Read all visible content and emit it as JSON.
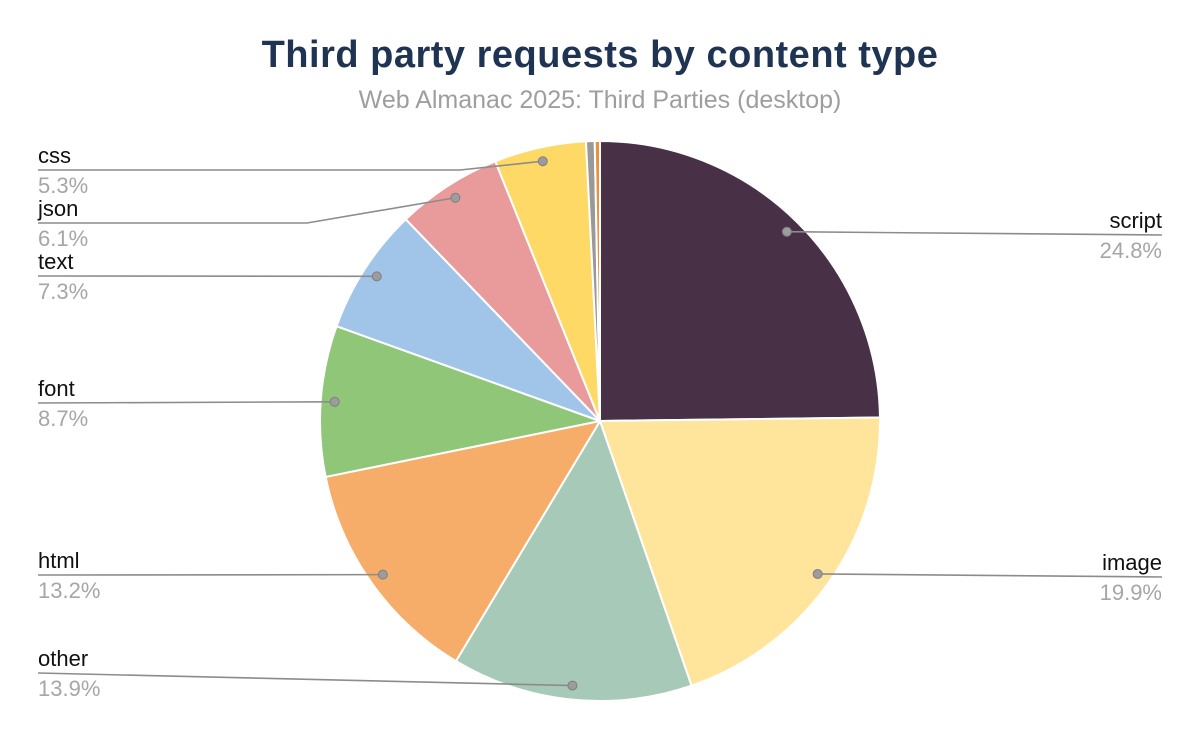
{
  "title": "Third party requests by content type",
  "subtitle": "Web Almanac 2025: Third Parties (desktop)",
  "colors": {
    "title": "#1f3352",
    "subtitle": "#9e9e9e",
    "label_text": "#101010",
    "value_text": "#a6a6a6",
    "leader_line": "#8c8c8c",
    "leader_dot": "#9c9c9c",
    "background": "#ffffff"
  },
  "chart_data": {
    "type": "pie",
    "title": "Third party requests by content type",
    "subtitle": "Web Almanac 2025: Third Parties (desktop)",
    "unit": "%",
    "start_angle_deg": 0,
    "direction": "clockwise",
    "legend_position": "none",
    "slices": [
      {
        "label": "script",
        "value": 24.8,
        "display": "24.8%",
        "color": "#483146",
        "labeled": true,
        "label_side": "right"
      },
      {
        "label": "image",
        "value": 19.9,
        "display": "19.9%",
        "color": "#ffe49c",
        "labeled": true,
        "label_side": "right"
      },
      {
        "label": "other",
        "value": 13.9,
        "display": "13.9%",
        "color": "#a7c9b8",
        "labeled": true,
        "label_side": "left"
      },
      {
        "label": "html",
        "value": 13.2,
        "display": "13.2%",
        "color": "#f6ad69",
        "labeled": true,
        "label_side": "left"
      },
      {
        "label": "font",
        "value": 8.7,
        "display": "8.7%",
        "color": "#90c678",
        "labeled": true,
        "label_side": "left"
      },
      {
        "label": "text",
        "value": 7.3,
        "display": "7.3%",
        "color": "#a0c5e8",
        "labeled": true,
        "label_side": "left"
      },
      {
        "label": "json",
        "value": 6.1,
        "display": "6.1%",
        "color": "#e99a9a",
        "labeled": true,
        "label_side": "left"
      },
      {
        "label": "css",
        "value": 5.3,
        "display": "5.3%",
        "color": "#fed966",
        "labeled": true,
        "label_side": "left"
      },
      {
        "label": "unlabeled-gray",
        "value": 0.5,
        "display": "",
        "color": "#999999",
        "labeled": false
      },
      {
        "label": "unlabeled-orange",
        "value": 0.3,
        "display": "",
        "color": "#e8913f",
        "labeled": false
      }
    ]
  }
}
